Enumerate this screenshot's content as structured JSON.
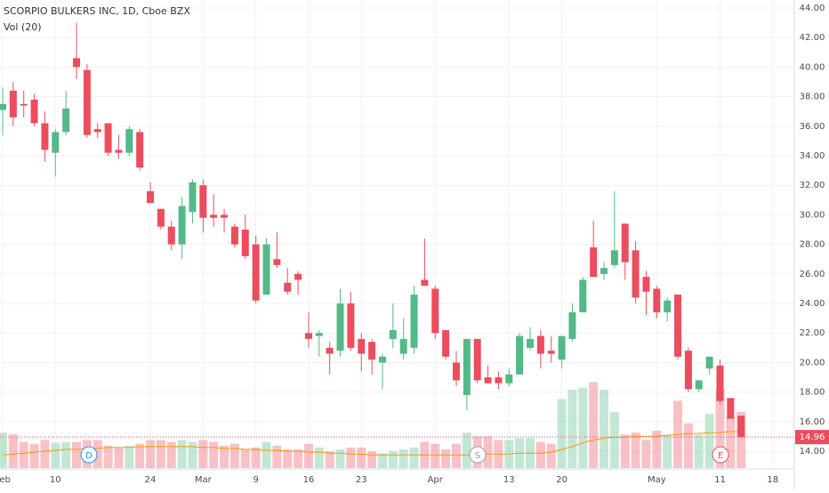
{
  "chart_data": {
    "type": "candlestick",
    "title": "SCORPIO BULKERS INC, 1D, Cboe BZX",
    "indicator_label": "Vol (20)",
    "categories": [
      "Feb",
      null,
      null,
      null,
      null,
      "10",
      null,
      null,
      null,
      null,
      null,
      null,
      null,
      null,
      "24",
      null,
      null,
      null,
      null,
      "Mar",
      null,
      null,
      null,
      null,
      "9",
      null,
      null,
      null,
      null,
      "16",
      null,
      null,
      null,
      null,
      "23",
      null,
      null,
      null,
      null,
      null,
      null,
      "Apr",
      null,
      null,
      null,
      null,
      null,
      null,
      "13",
      null,
      null,
      null,
      null,
      "20",
      null,
      null,
      null,
      null,
      null,
      null,
      null,
      null,
      "May",
      null,
      null,
      null,
      null,
      null,
      "11",
      null,
      null,
      null,
      null,
      "18"
    ],
    "open": [
      37.1,
      38.4,
      37.5,
      37.8,
      36.2,
      34.2,
      35.6,
      40.6,
      39.8,
      35.8,
      36.2,
      34.4,
      34.2,
      35.6,
      31.6,
      30.4,
      29.2,
      28.0,
      30.2,
      32.0,
      30.0,
      30.0,
      29.2,
      29.0,
      28.0,
      24.6,
      27.0,
      25.4,
      26.0,
      22.0,
      21.8,
      21.0,
      20.8,
      24.0,
      21.6,
      21.4,
      20.0,
      21.6,
      20.6,
      21.0,
      25.6,
      25.0,
      22.2,
      20.0,
      17.8,
      21.6,
      19.0,
      19.0,
      18.6,
      19.2,
      21.0,
      21.8,
      20.8,
      20.2,
      21.6,
      23.4,
      27.8,
      26.0,
      26.6,
      29.4,
      27.6,
      25.8,
      25.0,
      23.4,
      24.6,
      20.8,
      18.2,
      19.6,
      19.8,
      17.6,
      16.4,
      null,
      null,
      null
    ],
    "high": [
      38.6,
      39.0,
      38.4,
      38.2,
      37.0,
      35.8,
      38.4,
      43.0,
      40.2,
      36.2,
      36.2,
      35.4,
      36.0,
      35.8,
      32.2,
      30.4,
      29.6,
      31.2,
      32.4,
      32.4,
      31.4,
      30.4,
      29.4,
      30.0,
      28.6,
      28.4,
      28.8,
      26.4,
      26.2,
      23.4,
      22.2,
      21.4,
      25.0,
      24.8,
      22.0,
      21.6,
      20.6,
      24.0,
      23.0,
      25.2,
      28.4,
      25.2,
      22.2,
      20.8,
      21.6,
      21.6,
      19.8,
      19.4,
      19.6,
      22.0,
      22.4,
      22.2,
      21.8,
      21.8,
      24.0,
      25.8,
      29.6,
      26.8,
      31.6,
      29.4,
      28.2,
      26.2,
      25.2,
      24.4,
      24.6,
      21.0,
      18.8,
      20.4,
      20.2,
      17.6,
      16.4,
      null,
      null,
      null
    ],
    "low": [
      35.4,
      36.0,
      36.6,
      36.0,
      33.6,
      32.6,
      35.4,
      39.2,
      35.2,
      35.2,
      34.0,
      33.8,
      34.0,
      33.0,
      30.8,
      29.0,
      27.6,
      27.0,
      29.4,
      28.8,
      29.2,
      28.8,
      27.8,
      27.0,
      24.0,
      24.6,
      26.4,
      24.6,
      24.6,
      21.0,
      20.4,
      19.2,
      20.4,
      20.8,
      19.4,
      19.2,
      18.2,
      21.0,
      20.2,
      20.6,
      25.2,
      21.6,
      20.2,
      18.4,
      16.8,
      18.6,
      18.6,
      18.2,
      18.4,
      19.2,
      20.8,
      19.6,
      20.0,
      19.6,
      21.4,
      23.4,
      25.8,
      25.6,
      26.4,
      25.6,
      24.0,
      23.2,
      23.0,
      22.8,
      20.2,
      18.0,
      18.0,
      19.2,
      17.2,
      16.2,
      14.96,
      null,
      null,
      null
    ],
    "close": [
      37.5,
      36.6,
      37.4,
      36.2,
      34.4,
      35.6,
      37.2,
      40.0,
      35.4,
      35.6,
      34.2,
      34.2,
      35.8,
      33.2,
      30.8,
      29.2,
      28.0,
      30.6,
      32.2,
      29.8,
      29.8,
      29.8,
      28.0,
      27.2,
      24.2,
      28.0,
      26.6,
      24.8,
      25.6,
      21.6,
      22.0,
      20.6,
      24.0,
      21.0,
      20.6,
      20.2,
      20.4,
      22.2,
      21.6,
      24.6,
      25.2,
      22.0,
      20.4,
      18.8,
      21.6,
      18.8,
      18.6,
      18.6,
      19.2,
      21.8,
      21.6,
      20.6,
      20.6,
      21.8,
      23.4,
      25.6,
      25.8,
      26.4,
      27.6,
      26.8,
      24.4,
      24.8,
      23.4,
      24.2,
      20.4,
      18.2,
      18.8,
      20.4,
      17.4,
      16.2,
      14.96,
      null,
      null,
      null
    ],
    "volume": [
      38,
      36,
      28,
      26,
      30,
      27,
      28,
      28,
      30,
      30,
      24,
      22,
      24,
      26,
      30,
      30,
      28,
      30,
      28,
      30,
      28,
      24,
      26,
      20,
      22,
      28,
      24,
      20,
      20,
      26,
      22,
      18,
      20,
      22,
      22,
      18,
      16,
      18,
      20,
      22,
      28,
      26,
      20,
      26,
      38,
      34,
      34,
      30,
      30,
      32,
      32,
      28,
      26,
      74,
      84,
      86,
      92,
      84,
      60,
      36,
      38,
      30,
      40,
      36,
      72,
      48,
      36,
      58,
      84,
      54,
      60,
      null,
      null,
      null
    ],
    "volume_ma": [
      14,
      15,
      16,
      17,
      18,
      19,
      20,
      20,
      21,
      21,
      22,
      22,
      22,
      23,
      23,
      23,
      23,
      23,
      23,
      22,
      22,
      21,
      21,
      20,
      20,
      19,
      19,
      18,
      18,
      17,
      17,
      16,
      16,
      15,
      15,
      14,
      14,
      14,
      14,
      14,
      14,
      14,
      14,
      14,
      14,
      15,
      15,
      15,
      15,
      16,
      16,
      16,
      17,
      20,
      23,
      27,
      30,
      32,
      33,
      33,
      34,
      34,
      34,
      35,
      36,
      37,
      37,
      38,
      38,
      39,
      39,
      null,
      null,
      null
    ],
    "up_color": "#53b987",
    "down_color": "#eb4d5c",
    "ma_color": "#ff9800",
    "ylim": [
      12.8,
      44.54
    ],
    "yticks": [
      {
        "value": 14,
        "label": "14.00"
      },
      {
        "value": 16,
        "label": "16.00"
      },
      {
        "value": 18,
        "label": "18.00"
      },
      {
        "value": 20,
        "label": "20.00"
      },
      {
        "value": 22,
        "label": "22.00"
      },
      {
        "value": 24,
        "label": "24.00"
      },
      {
        "value": 26,
        "label": "26.00"
      },
      {
        "value": 28,
        "label": "28.00"
      },
      {
        "value": 30,
        "label": "30.00"
      },
      {
        "value": 32,
        "label": "32.00"
      },
      {
        "value": 34,
        "label": "34.00"
      },
      {
        "value": 36,
        "label": "36.00"
      },
      {
        "value": 38,
        "label": "38.00"
      },
      {
        "value": 40,
        "label": "40.00"
      },
      {
        "value": 42,
        "label": "42.00"
      },
      {
        "value": 44,
        "label": "44.00"
      }
    ],
    "vlim": [
      0,
      100
    ],
    "last_price": 14.96,
    "events": [
      "D",
      "S",
      "E"
    ],
    "grid": true
  }
}
